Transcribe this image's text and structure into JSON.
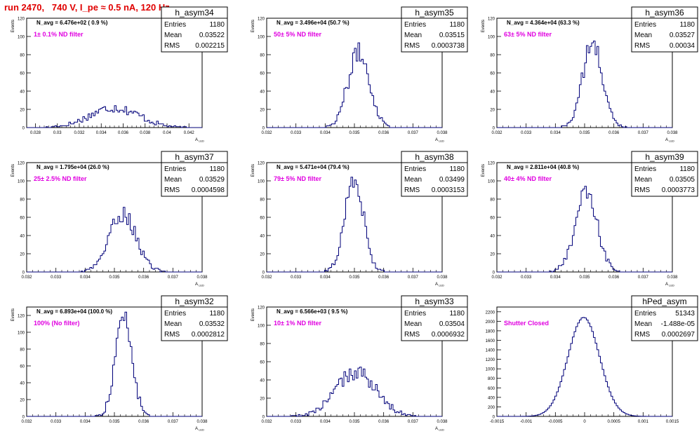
{
  "run_title": "run 2470,   740 V, I_pe ≈ 0.5 nA, 120 Hz",
  "chart_data": [
    {
      "type": "histogram",
      "name": "h_asym34",
      "stats": {
        "entries": "1180",
        "mean": "0.03522",
        "rms": "0.002215"
      },
      "navg_text": "N_avg = 6.476e+02 ( 0.9 %)",
      "filter_text": "1± 0.1% ND filter",
      "ylabel": "Events",
      "xlabel": "A",
      "xlabel_sub": "LED",
      "xlim": [
        0.0272,
        0.0432
      ],
      "ylim": [
        0,
        120
      ],
      "xticks": [
        "0.028",
        "0.03",
        "0.032",
        "0.034",
        "0.036",
        "0.038",
        "0.04",
        "0.042"
      ],
      "xtick_values": [
        0.028,
        0.03,
        0.032,
        0.034,
        0.036,
        0.038,
        0.04,
        0.042
      ],
      "yticks": [
        "0",
        "20",
        "40",
        "60",
        "80",
        "100",
        "120"
      ],
      "ytick_values": [
        0,
        20,
        40,
        60,
        80,
        100,
        120
      ],
      "mean": 0.03522,
      "rms": 0.002215,
      "peak": 22
    },
    {
      "type": "histogram",
      "name": "h_asym35",
      "stats": {
        "entries": "1180",
        "mean": "0.03515",
        "rms": "0.0003738"
      },
      "navg_text": "N_avg = 3.496e+04 (50.7 %)",
      "filter_text": "50± 5% ND filter",
      "ylabel": "Events",
      "xlabel": "A",
      "xlabel_sub": "LED",
      "xlim": [
        0.032,
        0.038
      ],
      "ylim": [
        0,
        120
      ],
      "xticks": [
        "0.032",
        "0.033",
        "0.034",
        "0.035",
        "0.036",
        "0.037",
        "0.038"
      ],
      "xtick_values": [
        0.032,
        0.033,
        0.034,
        0.035,
        0.036,
        0.037,
        0.038
      ],
      "yticks": [
        "0",
        "20",
        "40",
        "60",
        "80",
        "100",
        "120"
      ],
      "ytick_values": [
        0,
        20,
        40,
        60,
        80,
        100,
        120
      ],
      "mean": 0.03515,
      "rms": 0.0003738,
      "peak": 82
    },
    {
      "type": "histogram",
      "name": "h_asym36",
      "stats": {
        "entries": "1180",
        "mean": "0.03527",
        "rms": "0.00034"
      },
      "navg_text": "N_avg = 4.364e+04 (63.3 %)",
      "filter_text": "63± 5% ND filter",
      "ylabel": "Events",
      "xlabel": "A",
      "xlabel_sub": "LED",
      "xlim": [
        0.032,
        0.038
      ],
      "ylim": [
        0,
        120
      ],
      "xticks": [
        "0.032",
        "0.033",
        "0.034",
        "0.035",
        "0.036",
        "0.037",
        "0.038"
      ],
      "xtick_values": [
        0.032,
        0.033,
        0.034,
        0.035,
        0.036,
        0.037,
        0.038
      ],
      "yticks": [
        "0",
        "20",
        "40",
        "60",
        "80",
        "100",
        "120"
      ],
      "ytick_values": [
        0,
        20,
        40,
        60,
        80,
        100,
        120
      ],
      "mean": 0.03527,
      "rms": 0.00034,
      "peak": 92
    },
    {
      "type": "histogram",
      "name": "h_asym37",
      "stats": {
        "entries": "1180",
        "mean": "0.03529",
        "rms": "0.0004598"
      },
      "navg_text": "N_avg = 1.795e+04 (26.0 %)",
      "filter_text": "25± 2.5% ND filter",
      "ylabel": "Events",
      "xlabel": "A",
      "xlabel_sub": "LED",
      "xlim": [
        0.032,
        0.038
      ],
      "ylim": [
        0,
        120
      ],
      "xticks": [
        "0.032",
        "0.033",
        "0.034",
        "0.035",
        "0.036",
        "0.037",
        "0.038"
      ],
      "xtick_values": [
        0.032,
        0.033,
        0.034,
        0.035,
        0.036,
        0.037,
        0.038
      ],
      "yticks": [
        "0",
        "20",
        "40",
        "60",
        "80",
        "100",
        "120"
      ],
      "ytick_values": [
        0,
        20,
        40,
        60,
        80,
        100,
        120
      ],
      "mean": 0.03529,
      "rms": 0.0004598,
      "peak": 64
    },
    {
      "type": "histogram",
      "name": "h_asym38",
      "stats": {
        "entries": "1180",
        "mean": "0.03499",
        "rms": "0.0003153"
      },
      "navg_text": "N_avg = 5.471e+04 (79.4 %)",
      "filter_text": "79± 5% ND filter",
      "ylabel": "Events",
      "xlabel": "A",
      "xlabel_sub": "LED",
      "xlim": [
        0.032,
        0.038
      ],
      "ylim": [
        0,
        120
      ],
      "xticks": [
        "0.032",
        "0.033",
        "0.034",
        "0.035",
        "0.036",
        "0.037",
        "0.038"
      ],
      "xtick_values": [
        0.032,
        0.033,
        0.034,
        0.035,
        0.036,
        0.037,
        0.038
      ],
      "yticks": [
        "0",
        "20",
        "40",
        "60",
        "80",
        "100",
        "120"
      ],
      "ytick_values": [
        0,
        20,
        40,
        60,
        80,
        100,
        120
      ],
      "mean": 0.03499,
      "rms": 0.0003153,
      "peak": 104
    },
    {
      "type": "histogram",
      "name": "h_asym39",
      "stats": {
        "entries": "1180",
        "mean": "0.03505",
        "rms": "0.0003773"
      },
      "navg_text": "N_avg = 2.811e+04 (40.8 %)",
      "filter_text": "40± 4% ND filter",
      "ylabel": "Events",
      "xlabel": "A",
      "xlabel_sub": "LED",
      "xlim": [
        0.032,
        0.038
      ],
      "ylim": [
        0,
        120
      ],
      "xticks": [
        "0.032",
        "0.033",
        "0.034",
        "0.035",
        "0.036",
        "0.037",
        "0.038"
      ],
      "xtick_values": [
        0.032,
        0.033,
        0.034,
        0.035,
        0.036,
        0.037,
        0.038
      ],
      "yticks": [
        "0",
        "20",
        "40",
        "60",
        "80",
        "100",
        "120"
      ],
      "ytick_values": [
        0,
        20,
        40,
        60,
        80,
        100,
        120
      ],
      "mean": 0.03505,
      "rms": 0.0003773,
      "peak": 86
    },
    {
      "type": "histogram",
      "name": "h_asym32",
      "stats": {
        "entries": "1180",
        "mean": "0.03532",
        "rms": "0.0002812"
      },
      "navg_text": "N_avg = 6.893e+04 (100.0 %)",
      "filter_text": "100% (No filter)",
      "ylabel": "Events",
      "xlabel": "A",
      "xlabel_sub": "LED",
      "xlim": [
        0.032,
        0.038
      ],
      "ylim": [
        0,
        130
      ],
      "xticks": [
        "0.032",
        "0.033",
        "0.034",
        "0.035",
        "0.036",
        "0.037",
        "0.038"
      ],
      "xtick_values": [
        0.032,
        0.033,
        0.034,
        0.035,
        0.036,
        0.037,
        0.038
      ],
      "yticks": [
        "0",
        "20",
        "40",
        "60",
        "80",
        "100",
        "120"
      ],
      "ytick_values": [
        0,
        20,
        40,
        60,
        80,
        100,
        120
      ],
      "mean": 0.03532,
      "rms": 0.0002812,
      "peak": 120
    },
    {
      "type": "histogram",
      "name": "h_asym33",
      "stats": {
        "entries": "1180",
        "mean": "0.03504",
        "rms": "0.0006932"
      },
      "navg_text": "N_avg = 6.566e+03 ( 9.5 %)",
      "filter_text": "10± 1% ND filter",
      "ylabel": "Events",
      "xlabel": "A",
      "xlabel_sub": "LED",
      "xlim": [
        0.032,
        0.038
      ],
      "ylim": [
        0,
        120
      ],
      "xticks": [
        "0.032",
        "0.033",
        "0.034",
        "0.035",
        "0.036",
        "0.037",
        "0.038"
      ],
      "xtick_values": [
        0.032,
        0.033,
        0.034,
        0.035,
        0.036,
        0.037,
        0.038
      ],
      "yticks": [
        "0",
        "20",
        "40",
        "60",
        "80",
        "100",
        "120"
      ],
      "ytick_values": [
        0,
        20,
        40,
        60,
        80,
        100,
        120
      ],
      "mean": 0.03504,
      "rms": 0.0006932,
      "peak": 48
    },
    {
      "type": "histogram",
      "name": "hPed_asym",
      "stats": {
        "entries": "51343",
        "mean": "-1.488e-05",
        "rms": "0.0002697"
      },
      "navg_text": "",
      "filter_text": "Shutter Closed",
      "ylabel": "",
      "xlabel": "",
      "xlabel_sub": "",
      "xlim": [
        -0.0015,
        0.0015
      ],
      "ylim": [
        0,
        2300
      ],
      "xticks": [
        "-0.0015",
        "-0.001",
        "-0.0005",
        "0",
        "0.0005",
        "0.001",
        "0.0015"
      ],
      "xtick_values": [
        -0.0015,
        -0.001,
        -0.0005,
        0,
        0.0005,
        0.001,
        0.0015
      ],
      "yticks": [
        "0",
        "200",
        "400",
        "600",
        "800",
        "1000",
        "1200",
        "1400",
        "1600",
        "1800",
        "2000",
        "2200"
      ],
      "ytick_values": [
        0,
        200,
        400,
        600,
        800,
        1000,
        1200,
        1400,
        1600,
        1800,
        2000,
        2200
      ],
      "mean": -1.488e-05,
      "rms": 0.0002697,
      "peak": 2080
    }
  ],
  "colors": {
    "histogram_line": "#00007a",
    "label_text": "#e000e0",
    "title_text": "#e00000",
    "frame": "#000000"
  }
}
